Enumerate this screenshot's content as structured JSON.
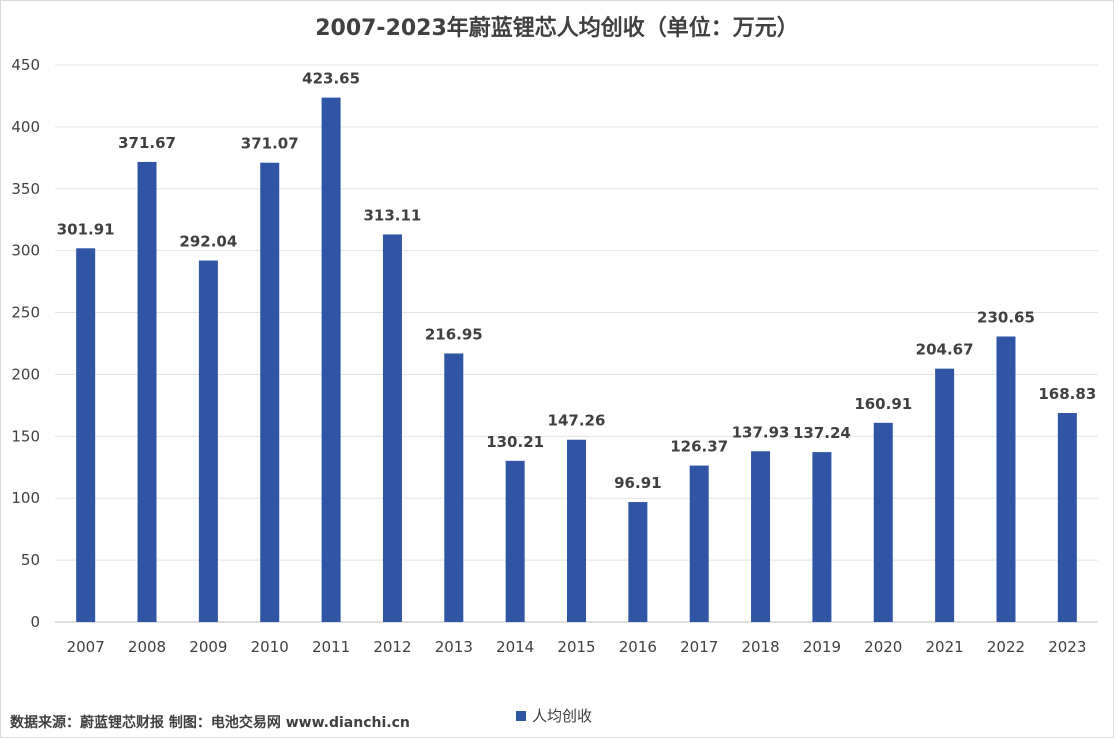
{
  "source_text": "数据来源：蔚蓝锂芯财报  制图：电池交易网 www.dianchi.cn",
  "chart_data": {
    "type": "bar",
    "title": "2007-2023年蔚蓝锂芯人均创收（单位：万元）",
    "categories": [
      "2007",
      "2008",
      "2009",
      "2010",
      "2011",
      "2012",
      "2013",
      "2014",
      "2015",
      "2016",
      "2017",
      "2018",
      "2019",
      "2020",
      "2021",
      "2022",
      "2023"
    ],
    "series": [
      {
        "name": "人均创收",
        "color": "#2f55a4",
        "values": [
          301.91,
          371.67,
          292.04,
          371.07,
          423.65,
          313.11,
          216.95,
          130.21,
          147.26,
          96.91,
          126.37,
          137.93,
          137.24,
          160.91,
          204.67,
          230.65,
          168.83
        ]
      }
    ],
    "ylim": [
      0,
      450
    ],
    "yticks": [
      0,
      50,
      100,
      150,
      200,
      250,
      300,
      350,
      400,
      450
    ],
    "grid": true,
    "legend": "bottom"
  }
}
